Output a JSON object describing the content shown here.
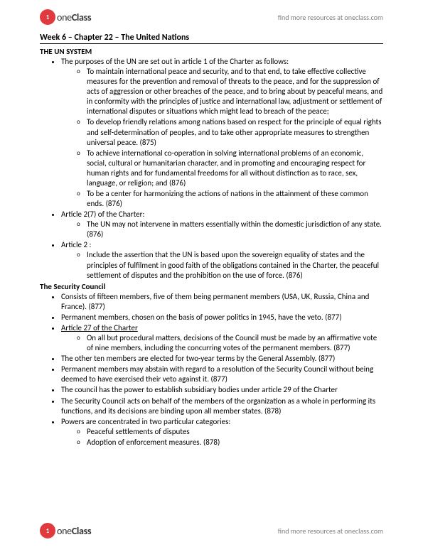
{
  "brand": {
    "name_part1": "one",
    "name_part2": "Class",
    "tagline": "find more resources at oneclass.com",
    "badge_bg": "#e03a3e"
  },
  "title": "Week 6 – Chapter 22 – The United Nations",
  "sections": [
    {
      "heading": "THE UN SYSTEM",
      "items": [
        {
          "text": "The purposes of the UN are set out in article 1 of the Charter as follows:",
          "sub": [
            "To maintain international peace and security, and to that end, to take effective collective measures for the prevention and removal of threats to the peace, and for the suppression of acts of aggression or other breaches of the peace, and to bring about by peaceful means, and in conformity with the principles of justice and international law, adjustment or settlement of international disputes or situations which might lead to breach of the peace;",
            "To develop friendly relations among nations based on respect for the principle of equal rights and self-determination of peoples, and to take other appropriate measures to strengthen universal peace. (875)",
            "To achieve international co-operation in solving international problems of an economic, social, cultural or humanitarian character, and in promoting and encouraging respect for human rights and for fundamental freedoms for all without distinction as to race, sex, language, or religion; and (876)",
            "To be a center for harmonizing the actions of nations in the attainment of these common ends. (876)"
          ]
        },
        {
          "text": "Article 2(7) of the Charter:",
          "sub": [
            "The UN may not intervene in matters essentially within the domestic jurisdiction of any state. (876)"
          ]
        },
        {
          "text": "Article 2 :",
          "sub": [
            "Include the assertion that the UN is based upon the sovereign equality of states and the principles of fulfilment in good faith of the obligations contained in the Charter, the peaceful settlement of disputes and the prohibition on the use of force. (876)"
          ]
        }
      ]
    },
    {
      "heading": "The Security Council",
      "items": [
        {
          "text": "Consists of fifteen members, five of them being permanent members (USA, UK, Russia, China and France). (877)"
        },
        {
          "text": "Permanent members, chosen on the basis of power politics in 1945, have the veto. (877)"
        },
        {
          "text": "Article 27 of the Charter",
          "underline": true,
          "sub": [
            "On all but procedural matters, decisions of the Council must be made by an affirmative vote of nine members, including the concurring votes of the permanent members. (877)"
          ]
        },
        {
          "text": "The other ten members are elected for two-year terms by the General Assembly. (877)"
        },
        {
          "text": "Permanent members may abstain with regard to a resolution of the Security Council without being deemed to have exercised their veto against it. (877)"
        },
        {
          "text": "The council has the power to establish subsidiary bodies under article 29 of the Charter"
        },
        {
          "text": "The Security Council acts on behalf of the members of the organization as a whole in performing its functions, and its decisions are binding upon all member states. (878)"
        },
        {
          "text": "Powers are concentrated in two particular categories:",
          "sub": [
            "Peaceful settlements of disputes",
            "Adoption of enforcement measures. (878)"
          ]
        }
      ]
    }
  ]
}
